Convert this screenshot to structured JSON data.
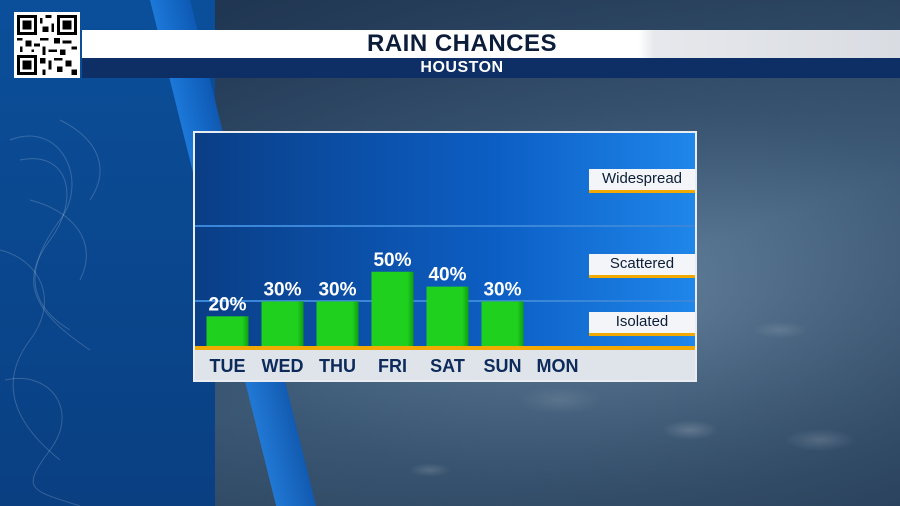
{
  "header": {
    "title": "RAIN CHANCES",
    "subtitle": "HOUSTON"
  },
  "qr_code": {
    "icon": "qr-code-icon"
  },
  "colors": {
    "bar": "#1fd01f",
    "bar_dark": "#0f9f0f",
    "panel_top": "#0b5fc2",
    "baseline": "#f2a900",
    "title_bg": "#ffffff",
    "subtitle_bg": "#0d2f66"
  },
  "chart_data": {
    "type": "bar",
    "categories": [
      "TUE",
      "WED",
      "THU",
      "FRI",
      "SAT",
      "SUN",
      "MON"
    ],
    "values": [
      20,
      30,
      30,
      50,
      40,
      30,
      null
    ],
    "value_labels": [
      "20%",
      "30%",
      "30%",
      "50%",
      "40%",
      "30%",
      ""
    ],
    "title": "RAIN CHANCES",
    "subtitle": "HOUSTON",
    "ylim": [
      0,
      100
    ],
    "levels": [
      "Widespread",
      "Scattered",
      "Isolated"
    ]
  }
}
